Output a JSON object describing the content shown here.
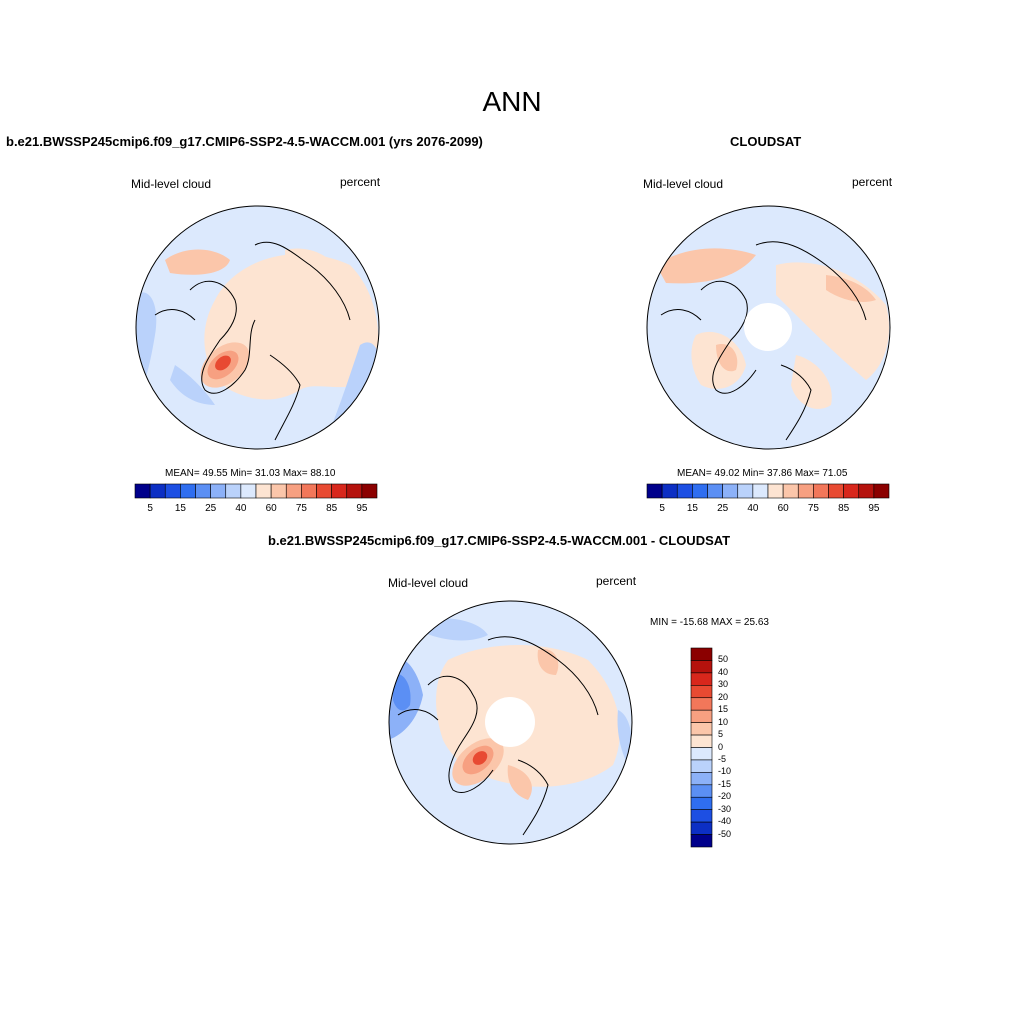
{
  "main_title": "ANN",
  "colors": {
    "abs_scale": [
      "#00008b",
      "#0c2fc4",
      "#1d4fe3",
      "#2f6ef0",
      "#5b8ff4",
      "#8cb1f8",
      "#bad2fb",
      "#dce9fd",
      "#fde4d2",
      "#fbc6aa",
      "#f7a081",
      "#f2775a",
      "#e84a32",
      "#d8271c",
      "#b5120d",
      "#8b0000"
    ],
    "diff_scale": [
      "#00008b",
      "#0c2fc4",
      "#1d4fe3",
      "#2f6ef0",
      "#5b8ff4",
      "#8cb1f8",
      "#bad2fb",
      "#dce9fd",
      "#fde4d2",
      "#fbc6aa",
      "#f7a081",
      "#f2775a",
      "#e84a32",
      "#d8271c",
      "#b5120d",
      "#8b0000"
    ]
  },
  "panels": {
    "model": {
      "title": "b.e21.BWSSP245cmip6.f09_g17.CMIP6-SSP2-4.5-WACCM.001 (yrs 2076-2099)",
      "variable": "Mid-level cloud",
      "units": "percent",
      "stats": "MEAN=  49.55  Min=  31.03  Max=  88.10",
      "colorbar_labels": [
        "5",
        "15",
        "25",
        "40",
        "60",
        "75",
        "85",
        "95"
      ]
    },
    "obs": {
      "title": "CLOUDSAT",
      "variable": "Mid-level cloud",
      "units": "percent",
      "stats": "MEAN=  49.02  Min=  37.86  Max=  71.05",
      "colorbar_labels": [
        "5",
        "15",
        "25",
        "40",
        "60",
        "75",
        "85",
        "95"
      ]
    },
    "diff": {
      "title": "b.e21.BWSSP245cmip6.f09_g17.CMIP6-SSP2-4.5-WACCM.001 - CLOUDSAT",
      "variable": "Mid-level cloud",
      "units": "percent",
      "stats": "MIN = -15.68 MAX =  25.63",
      "colorbar_labels": [
        "50",
        "40",
        "30",
        "20",
        "15",
        "10",
        "5",
        "0",
        "-5",
        "-10",
        "-15",
        "-20",
        "-30",
        "-40",
        "-50"
      ]
    }
  }
}
